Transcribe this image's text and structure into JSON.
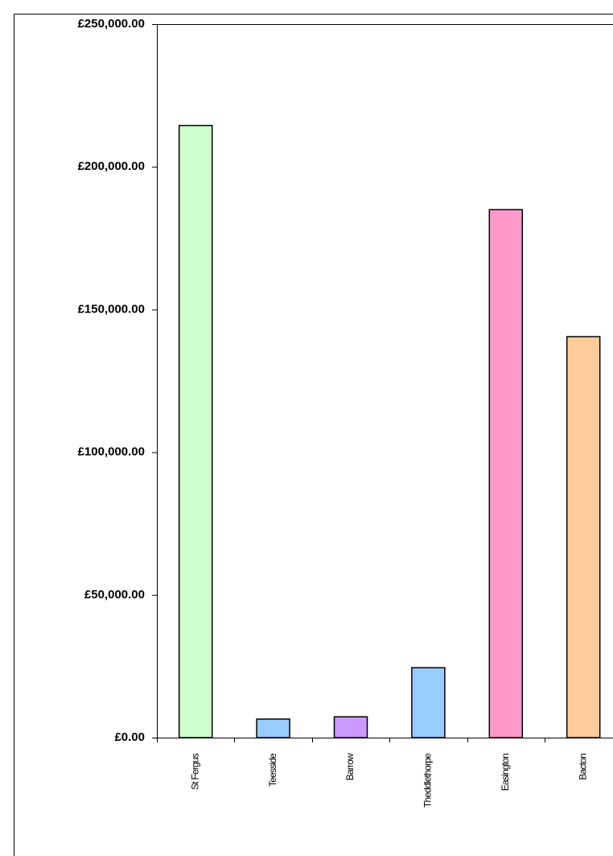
{
  "chart_data": {
    "type": "bar",
    "categories": [
      "St Fergus",
      "Teesside",
      "Barrow",
      "Theddlethorpe",
      "Easington",
      "Bacton"
    ],
    "values": [
      214500,
      6500,
      7300,
      24500,
      185000,
      140500
    ],
    "colors": [
      "#ccffcc",
      "#99ccff",
      "#cc99ff",
      "#99ccff",
      "#ff99cc",
      "#ffcc99"
    ],
    "ylim": [
      0,
      250000
    ],
    "yticks": [
      {
        "value": 0,
        "label": "£0.00"
      },
      {
        "value": 50000,
        "label": "£50,000.00"
      },
      {
        "value": 100000,
        "label": "£100,000.00"
      },
      {
        "value": 150000,
        "label": "£150,000.00"
      },
      {
        "value": 200000,
        "label": "£200,000.00"
      },
      {
        "value": 250000,
        "label": "£250,000.00"
      }
    ],
    "grid": false
  }
}
